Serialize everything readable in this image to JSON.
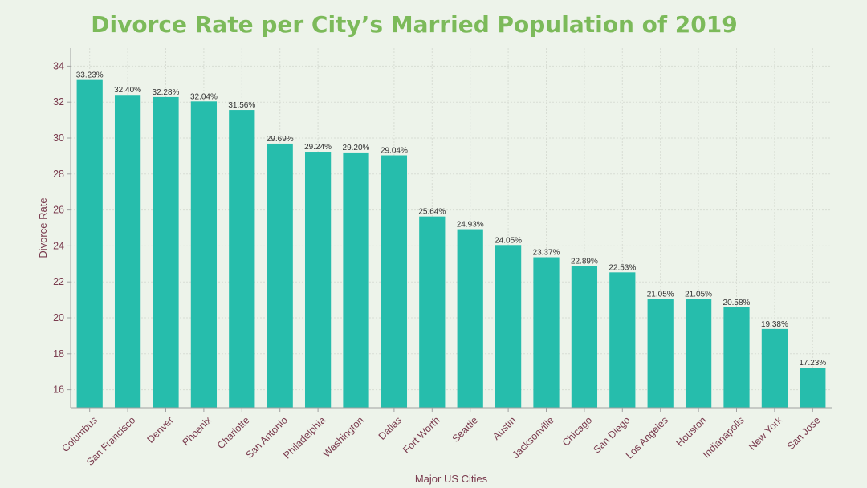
{
  "chart_data": {
    "type": "bar",
    "title": "Divorce Rate per City’s Married Population of 2019",
    "xlabel": "Major US Cities",
    "ylabel": "Divorce Rate",
    "ylim": [
      15,
      35
    ],
    "yticks": [
      16,
      18,
      20,
      22,
      24,
      26,
      28,
      30,
      32,
      34
    ],
    "grid": true,
    "categories": [
      "Columbus",
      "San Francisco",
      "Denver",
      "Phoenix",
      "Charlotte",
      "San Antonio",
      "Philadelphia",
      "Washington",
      "Dallas",
      "Fort Worth",
      "Seattle",
      "Austin",
      "Jacksonville",
      "Chicago",
      "San Diego",
      "Los Angeles",
      "Houston",
      "Indianapolis",
      "New York",
      "San Jose"
    ],
    "values": [
      33.23,
      32.4,
      32.28,
      32.04,
      31.56,
      29.69,
      29.24,
      29.2,
      29.04,
      25.64,
      24.93,
      24.05,
      23.37,
      22.89,
      22.53,
      21.05,
      21.05,
      20.58,
      19.38,
      17.23
    ],
    "data_labels": [
      "33.23%",
      "32.40%",
      "32.28%",
      "32.04%",
      "31.56%",
      "29.69%",
      "29.24%",
      "29.20%",
      "29.04%",
      "25.64%",
      "24.93%",
      "24.05%",
      "23.37%",
      "22.89%",
      "22.53%",
      "21.05%",
      "21.05%",
      "20.58%",
      "19.38%",
      "17.23%"
    ],
    "colors": {
      "bar": "#26bdac",
      "title": "#7cba5a",
      "axis_label": "#7a3b4e",
      "tick_label": "#7a3b4e",
      "grid": "#d8ddd4",
      "axis": "#a0a0a0",
      "data_label": "#333333"
    }
  }
}
